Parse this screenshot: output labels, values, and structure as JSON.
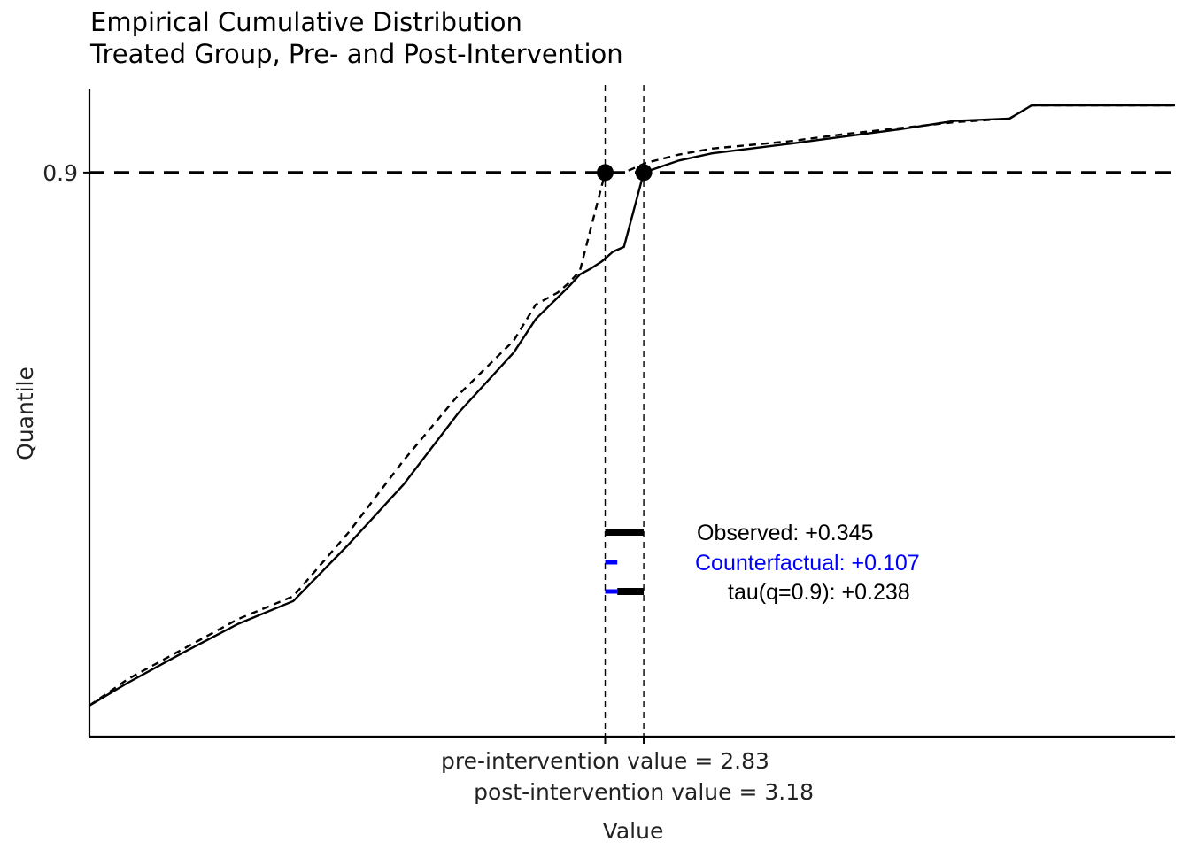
{
  "chart_data": {
    "type": "line",
    "title": "Empirical Cumulative Distribution",
    "subtitle": "Treated Group,  Pre- and Post-Intervention",
    "xlabel": "Value",
    "ylabel": "Quantile",
    "xlim": [
      -1.85,
      8.0
    ],
    "ylim": [
      0.43,
      0.97
    ],
    "y_ticks": [
      {
        "value": 0.9,
        "label": "0.9"
      }
    ],
    "x_ticks": [
      {
        "value": 2.83,
        "label": "pre-intervention value = 2.83"
      },
      {
        "value": 3.18,
        "label": "post-intervention value = 3.18"
      }
    ],
    "grid": false,
    "quantile": 0.9,
    "series": [
      {
        "style": "solid",
        "x": [
          -1.85,
          -1.5,
          -1.0,
          -0.5,
          0.0,
          0.5,
          1.0,
          1.5,
          2.0,
          2.2,
          2.4,
          2.5,
          2.6,
          2.7,
          2.8,
          2.9,
          3.0,
          3.18,
          3.5,
          3.8,
          4.5,
          5.0,
          5.5,
          6.0,
          6.5,
          6.7,
          8.0
        ],
        "y": [
          0.456,
          0.475,
          0.5,
          0.524,
          0.543,
          0.59,
          0.64,
          0.7,
          0.75,
          0.778,
          0.796,
          0.805,
          0.815,
          0.82,
          0.826,
          0.834,
          0.838,
          0.9,
          0.91,
          0.916,
          0.924,
          0.93,
          0.936,
          0.943,
          0.945,
          0.956,
          0.956
        ]
      },
      {
        "style": "dashed",
        "x": [
          -1.85,
          -1.5,
          -1.0,
          -0.5,
          0.0,
          0.5,
          1.0,
          1.5,
          2.0,
          2.2,
          2.4,
          2.5,
          2.6,
          2.83,
          3.0,
          3.2,
          3.5,
          3.8,
          4.5,
          5.0,
          5.5,
          6.0,
          6.5,
          6.7,
          8.0
        ],
        "y": [
          0.456,
          0.478,
          0.503,
          0.528,
          0.547,
          0.6,
          0.66,
          0.715,
          0.76,
          0.79,
          0.8,
          0.808,
          0.818,
          0.9,
          0.9,
          0.908,
          0.915,
          0.92,
          0.926,
          0.932,
          0.937,
          0.942,
          0.945,
          0.956,
          0.956
        ]
      }
    ],
    "points": [
      {
        "x": 2.83,
        "y": 0.9
      },
      {
        "x": 3.18,
        "y": 0.9
      }
    ],
    "annotations": [
      {
        "text": "Observed:  +0.345",
        "color": "#000000",
        "bar_from": 2.83,
        "bar_to": 3.18
      },
      {
        "text": "Counterfactual:  +0.107",
        "color": "#0000ff",
        "bar_from": 2.83,
        "bar_to": 2.94
      },
      {
        "text": "tau(q=0.9):  +0.238",
        "color": "#000000",
        "bar_from": 2.94,
        "bar_to": 3.18
      }
    ],
    "colors": {
      "line": "#000000",
      "counterfactual": "#0000ff"
    }
  }
}
